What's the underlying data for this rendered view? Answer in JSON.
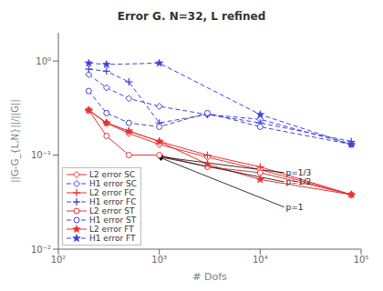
{
  "chart_data": {
    "type": "line",
    "title": "Error G. N=32, L refined",
    "x_label": "# Dofs",
    "y_label": "||G-G_{L,N}||/||G||",
    "log": true,
    "xlim": [
      100,
      100000
    ],
    "ylim": [
      0.01,
      2.0
    ],
    "xticks": [
      {
        "value": 100,
        "label": "10²"
      },
      {
        "value": 1000,
        "label": "10³"
      },
      {
        "value": 10000,
        "label": "10⁴"
      },
      {
        "value": 100000,
        "label": "10⁵"
      }
    ],
    "yticks": [
      {
        "value": 0.01,
        "label": "10⁻²"
      },
      {
        "value": 0.1,
        "label": "10⁻¹"
      },
      {
        "value": 1,
        "label": "10⁰"
      }
    ],
    "grid": false,
    "legend": "lower left",
    "series": [
      {
        "name": "L2 error SC",
        "color": "#e83030",
        "marker": "diamond",
        "line_style": "solid",
        "x": [
          200,
          300,
          500,
          1000,
          3000,
          10000,
          80000
        ],
        "values": [
          0.3,
          0.22,
          0.17,
          0.13,
          0.095,
          0.07,
          0.038
        ]
      },
      {
        "name": "H1 error SC",
        "color": "#4040dd",
        "marker": "diamond",
        "line_style": "dashed",
        "x": [
          200,
          300,
          500,
          1000,
          3000,
          10000,
          80000
        ],
        "values": [
          0.72,
          0.52,
          0.4,
          0.33,
          0.27,
          0.24,
          0.13
        ]
      },
      {
        "name": "L2 error FC",
        "color": "#e83030",
        "marker": "plus",
        "line_style": "solid",
        "x": [
          200,
          300,
          500,
          1000,
          3000,
          10000,
          80000
        ],
        "values": [
          0.3,
          0.22,
          0.18,
          0.14,
          0.1,
          0.075,
          0.038
        ]
      },
      {
        "name": "H1 error FC",
        "color": "#4040dd",
        "marker": "plus",
        "line_style": "dashed",
        "x": [
          200,
          300,
          500,
          1000,
          3000,
          10000,
          80000
        ],
        "values": [
          0.82,
          0.78,
          0.6,
          0.22,
          0.27,
          0.22,
          0.14
        ]
      },
      {
        "name": "L2 error ST",
        "color": "#e83030",
        "marker": "circle",
        "line_style": "solid",
        "x": [
          200,
          300,
          500,
          1000,
          3000,
          10000,
          80000
        ],
        "values": [
          0.3,
          0.16,
          0.1,
          0.1,
          0.075,
          0.065,
          0.038
        ]
      },
      {
        "name": "H1 error ST",
        "color": "#4040dd",
        "marker": "circle",
        "line_style": "dashed",
        "x": [
          200,
          300,
          500,
          1000,
          3000,
          10000,
          80000
        ],
        "values": [
          0.48,
          0.28,
          0.22,
          0.2,
          0.28,
          0.2,
          0.13
        ]
      },
      {
        "name": "L2 error FT",
        "color": "#e83030",
        "marker": "star",
        "line_style": "solid",
        "x": [
          200,
          300,
          500,
          1000,
          3000,
          10000,
          80000
        ],
        "values": [
          0.3,
          0.22,
          0.18,
          0.14,
          0.08,
          0.055,
          0.038
        ]
      },
      {
        "name": "H1 error FT",
        "color": "#4040dd",
        "marker": "star",
        "line_style": "dashed",
        "x": [
          200,
          300,
          1000,
          10000,
          80000
        ],
        "values": [
          0.95,
          0.92,
          0.95,
          0.27,
          0.13
        ]
      }
    ],
    "annotations": [
      {
        "text": "p=1/3",
        "x": 18000,
        "y": 0.065,
        "arrow_x": 950,
        "arrow_y": 0.097
      },
      {
        "text": "p=1/2",
        "x": 18000,
        "y": 0.052,
        "arrow_x": 950,
        "arrow_y": 0.097
      },
      {
        "text": "p=1",
        "x": 18000,
        "y": 0.028,
        "arrow_x": 950,
        "arrow_y": 0.097
      }
    ]
  }
}
